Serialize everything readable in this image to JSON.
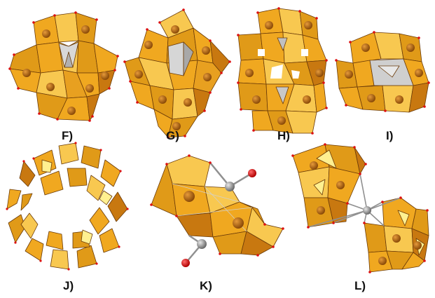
{
  "figure": {
    "panels": [
      {
        "id": "F",
        "label": "F)"
      },
      {
        "id": "G",
        "label": "G)"
      },
      {
        "id": "H",
        "label": "H)"
      },
      {
        "id": "I",
        "label": "I)"
      },
      {
        "id": "J",
        "label": "J)"
      },
      {
        "id": "K",
        "label": "K)"
      },
      {
        "id": "L",
        "label": "L)"
      }
    ]
  },
  "colors": {
    "polyhedron_face": "#f0a820",
    "polyhedron_face_light": "#f8c850",
    "polyhedron_face_dark": "#c87810",
    "polyhedron_edge": "#6a3a08",
    "metal_sphere": "#b86a10",
    "central_tetrahedron": "#c8c8c8",
    "oxygen_vertex": "#dd1010",
    "carbon_atom": "#9a9a9a",
    "bond": "#909090",
    "oxo_atom": "#e00000"
  }
}
